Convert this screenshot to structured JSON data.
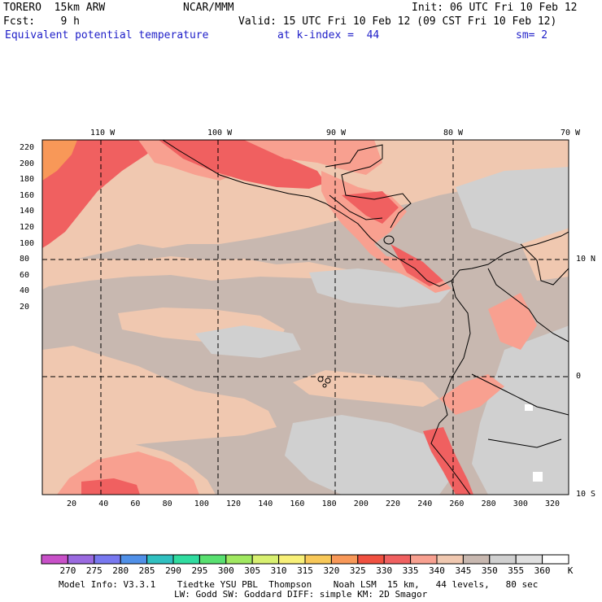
{
  "header": {
    "model": "TORERO  15km ARW",
    "center": "NCAR/MMM",
    "init": "Init: 06 UTC Fri 10 Feb 12",
    "fcst": "Fcst:    9 h",
    "valid": "Valid: 15 UTC Fri 10 Feb 12 (09 CST Fri 10 Feb 12)",
    "field": "Equivalent potential temperature",
    "level": "at k-index =  44",
    "smoothing": "sm= 2"
  },
  "map": {
    "lon_labels": [
      "110 W",
      "100 W",
      "90 W",
      "80 W",
      "70 W"
    ],
    "lat_labels": [
      "10 N",
      "0",
      "10 S"
    ],
    "y_ticks": [
      "220",
      "200",
      "180",
      "160",
      "140",
      "120",
      "100",
      "80",
      "60",
      "40",
      "20"
    ],
    "x_ticks": [
      "20",
      "40",
      "60",
      "80",
      "100",
      "120",
      "140",
      "160",
      "180",
      "200",
      "220",
      "240",
      "260",
      "280",
      "300",
      "320"
    ]
  },
  "colorbar": {
    "labels": [
      "270",
      "275",
      "280",
      "285",
      "290",
      "295",
      "300",
      "305",
      "310",
      "315",
      "320",
      "325",
      "330",
      "335",
      "340",
      "345",
      "350",
      "355",
      "360"
    ],
    "unit": "K",
    "colors": [
      "#c850c8",
      "#9a6ae0",
      "#7878f0",
      "#5090e8",
      "#30c0c0",
      "#30dca0",
      "#58e070",
      "#a0e860",
      "#d8f070",
      "#f8f078",
      "#f8c858",
      "#f89858",
      "#f05040",
      "#f06060",
      "#f8a090",
      "#f0c8b0",
      "#c8b8b0",
      "#d0d0d0",
      "#e0e0e0",
      "#ffffff"
    ]
  },
  "footer": {
    "line1": "Model Info: V3.3.1    Tiedtke YSU PBL  Thompson    Noah LSM  15 km,   44 levels,   80 sec",
    "line2": "LW: Godd SW: Goddard DIFF: simple KM: 2D Smagor"
  }
}
